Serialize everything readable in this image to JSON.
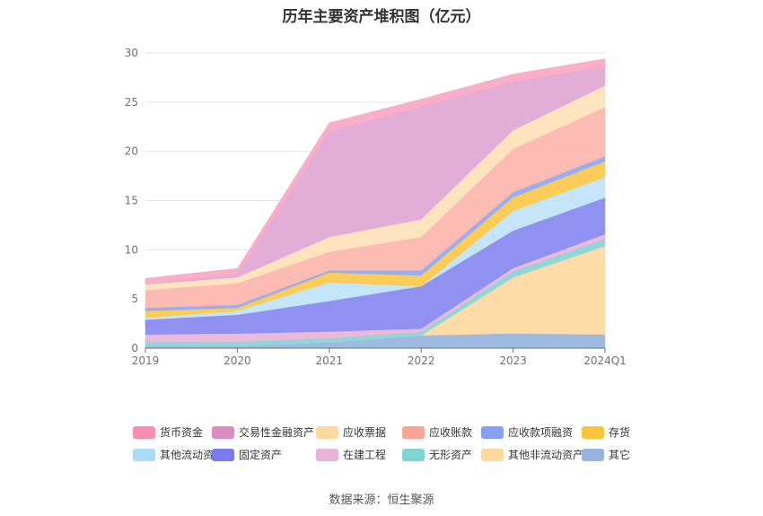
{
  "title": "历年主要资产堆积图（亿元）",
  "source": "数据来源：恒生聚源",
  "chart_data": {
    "type": "area",
    "stacked": true,
    "x": [
      "2019",
      "2020",
      "2021",
      "2022",
      "2023",
      "2024Q1"
    ],
    "ylim": [
      0,
      30
    ],
    "yticks": [
      0,
      5,
      10,
      15,
      20,
      25,
      30
    ],
    "grid": true,
    "legend_position": "bottom",
    "series": [
      {
        "name": "其它",
        "color": "#97b4de",
        "values": [
          0.2,
          0.2,
          0.6,
          1.3,
          1.5,
          1.4
        ]
      },
      {
        "name": "其他非流动资产",
        "color": "#fdd9a0",
        "values": [
          0.0,
          0.0,
          0.0,
          0.0,
          5.7,
          9.0
        ]
      },
      {
        "name": "无形资产",
        "color": "#86d5d7",
        "values": [
          0.45,
          0.45,
          0.4,
          0.35,
          0.6,
          0.7
        ]
      },
      {
        "name": "在建工程",
        "color": "#e8b4d8",
        "values": [
          0.75,
          0.85,
          0.7,
          0.35,
          0.35,
          0.5
        ]
      },
      {
        "name": "固定资产",
        "color": "#8888f0",
        "values": [
          1.5,
          1.9,
          3.1,
          4.3,
          3.8,
          3.7
        ]
      },
      {
        "name": "其他流动资产",
        "color": "#bfe4f7",
        "values": [
          0.2,
          0.4,
          1.9,
          0.0,
          2.0,
          2.1
        ]
      },
      {
        "name": "存货",
        "color": "#fbc94a",
        "values": [
          0.7,
          0.3,
          1.0,
          1.1,
          1.4,
          1.6
        ]
      },
      {
        "name": "应收款项融资",
        "color": "#8fa8f7",
        "values": [
          0.3,
          0.3,
          0.2,
          0.5,
          0.5,
          0.5
        ]
      },
      {
        "name": "应收账款",
        "color": "#fcb6ac",
        "values": [
          1.8,
          2.2,
          1.9,
          3.4,
          4.4,
          5.0
        ]
      },
      {
        "name": "应收票据",
        "color": "#fde2b8",
        "values": [
          0.6,
          0.6,
          1.5,
          1.8,
          1.9,
          2.2
        ]
      },
      {
        "name": "交易性金融资产",
        "color": "#e0a6d4",
        "values": [
          0.0,
          0.3,
          10.7,
          11.4,
          4.9,
          1.9
        ]
      },
      {
        "name": "货币资金",
        "color": "#f8a7c4",
        "values": [
          0.6,
          0.6,
          0.9,
          0.8,
          0.8,
          0.8
        ]
      }
    ]
  },
  "legend": [
    {
      "label": "货币资金",
      "color": "#f88fb0"
    },
    {
      "label": "交易性金融资产",
      "color": "#d98bc4"
    },
    {
      "label": "应收票据",
      "color": "#fdd9a0"
    },
    {
      "label": "应收账款",
      "color": "#f9a595"
    },
    {
      "label": "应收款项融资",
      "color": "#86a0f5"
    },
    {
      "label": "存货",
      "color": "#fbc43d"
    },
    {
      "label": "其他流动资产",
      "color": "#a8dcf7"
    },
    {
      "label": "固定资产",
      "color": "#7a7aef"
    },
    {
      "label": "在建工程",
      "color": "#e8b4d8"
    },
    {
      "label": "无形资产",
      "color": "#7fd3d3"
    },
    {
      "label": "其他非流动资产",
      "color": "#fdd9a0"
    },
    {
      "label": "其它",
      "color": "#97b4de"
    }
  ]
}
